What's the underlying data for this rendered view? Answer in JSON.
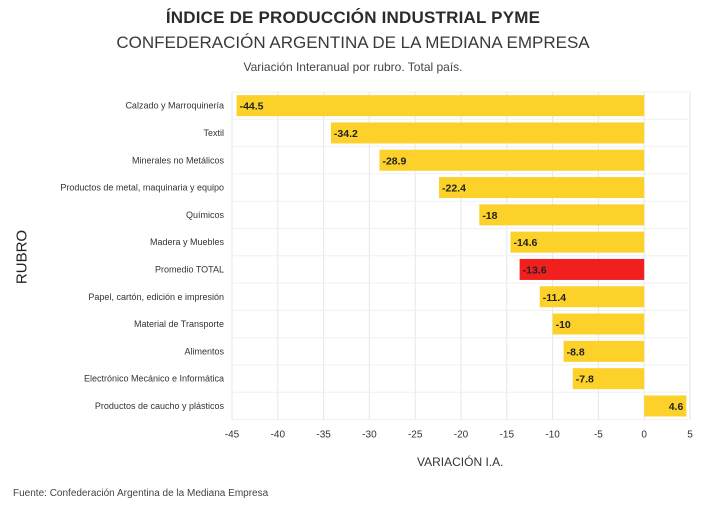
{
  "chart_data": {
    "type": "bar",
    "orientation": "horizontal",
    "title": "ÍNDICE DE PRODUCCIÓN INDUSTRIAL PYME",
    "subtitle": "CONFEDERACIÓN ARGENTINA DE LA MEDIANA EMPRESA",
    "description": "Variación Interanual por rubro. Total país.",
    "xlabel": "VARIACIÓN I.A.",
    "ylabel": "RUBRO",
    "source": "Fuente: Confederación Argentina de la Mediana Empresa",
    "xlim": [
      -45,
      5
    ],
    "xticks": [
      -45,
      -40,
      -35,
      -30,
      -25,
      -20,
      -15,
      -10,
      -5,
      0,
      5
    ],
    "categories": [
      "Calzado y Marroquinería",
      "Textil",
      "Minerales no Metálicos",
      "Productos de metal, maquinaria y equipo",
      "Químicos",
      "Madera y Muebles",
      "Promedio TOTAL",
      "Papel, cartón, edición e impresión",
      "Material de Transporte",
      "Alimentos",
      "Electrónico Mecánico e Informática",
      "Productos de caucho y plásticos"
    ],
    "values": [
      -44.5,
      -34.2,
      -28.9,
      -22.4,
      -18,
      -14.6,
      -13.6,
      -11.4,
      -10,
      -8.8,
      -7.8,
      4.6
    ],
    "value_labels": [
      "-44.5",
      "-34.2",
      "-28.9",
      "-22.4",
      "-18",
      "-14.6",
      "-13.6",
      "-11.4",
      "-10",
      "-8.8",
      "-7.8",
      "4.6"
    ],
    "highlight_category": "Promedio TOTAL",
    "colors": {
      "bar": "#fcd12a",
      "highlight": "#f21f1f",
      "grid": "#e6e6e6"
    },
    "grid": true
  }
}
